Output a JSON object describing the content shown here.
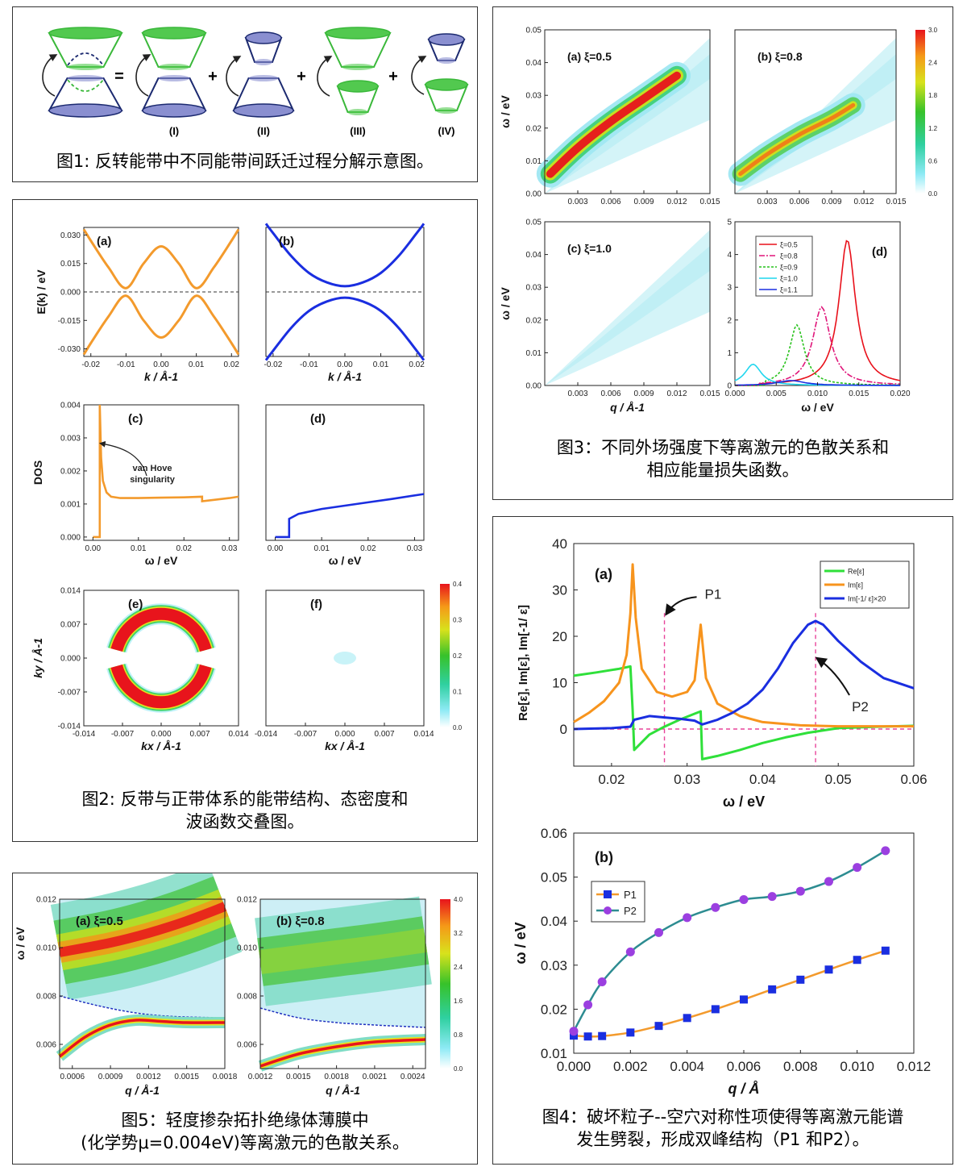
{
  "fig1": {
    "caption": "图1: 反转能带中不同能带间跃迁过程分解示意图。",
    "ops": [
      "=",
      "+",
      "+",
      "+"
    ],
    "labels": [
      "(I)",
      "(II)",
      "(III)",
      "(IV)"
    ]
  },
  "fig2": {
    "caption_line1": "图2: 反带与正带体系的能带结构、态密度和",
    "caption_line2": "波函数交叠图。",
    "annotation_line1": "van Hove",
    "annotation_line2": "singularity",
    "colorbar_ticks": [
      "0.4",
      "0.3",
      "0.2",
      "0.1",
      "0.0"
    ]
  },
  "fig3": {
    "caption_line1": "图3：不同外场强度下等离激元的色散关系和",
    "caption_line2": "相应能量损失函数。",
    "colorbar_ticks": [
      "3.0",
      "2.4",
      "1.8",
      "1.2",
      "0.6",
      "0.0"
    ]
  },
  "fig4": {
    "caption_line1": "图4：破坏粒子--空穴对称性项使得等离激元能谱",
    "caption_line2": "发生劈裂，形成双峰结构（P1 和P2）。",
    "arrow_labels": [
      "P1",
      "P2"
    ]
  },
  "fig5": {
    "caption_line1": "图5：轻度掺杂拓扑绝缘体薄膜中",
    "caption_line2": "(化学势μ=0.004eV)等离激元的色散关系。",
    "colorbar_ticks": [
      "4.0",
      "3.2",
      "2.4",
      "1.6",
      "0.8",
      "0.0"
    ]
  },
  "chart_data": [
    {
      "id": "fig2a",
      "type": "line",
      "panel_label": "(a)",
      "xlabel": "k / Å-1",
      "ylabel": "E(k) / eV",
      "xlim": [
        -0.022,
        0.022
      ],
      "ylim": [
        -0.034,
        0.034
      ],
      "xticks": [
        "-0.02",
        "-0.01",
        "0.00",
        "0.01",
        "0.02"
      ],
      "yticks": [
        "0.030",
        "0.015",
        "0.000",
        "-0.015",
        "-0.030"
      ],
      "series": [
        {
          "role": "conduction",
          "color": "#f39a2c",
          "x": [
            -0.022,
            -0.02,
            -0.015,
            -0.01,
            -0.005,
            0,
            0.005,
            0.01,
            0.015,
            0.02,
            0.022
          ],
          "y": [
            0.033,
            0.027,
            0.013,
            0.002,
            0.015,
            0.024,
            0.015,
            0.002,
            0.013,
            0.027,
            0.033
          ]
        },
        {
          "role": "valence",
          "color": "#f39a2c",
          "x": [
            -0.022,
            -0.02,
            -0.015,
            -0.01,
            -0.005,
            0,
            0.005,
            0.01,
            0.015,
            0.02,
            0.022
          ],
          "y": [
            -0.033,
            -0.027,
            -0.013,
            -0.002,
            -0.015,
            -0.024,
            -0.015,
            -0.002,
            -0.013,
            -0.027,
            -0.033
          ]
        }
      ],
      "reference_line_y": 0
    },
    {
      "id": "fig2b",
      "type": "line",
      "panel_label": "(b)",
      "xlabel": "k / Å-1",
      "xlim": [
        -0.022,
        0.022
      ],
      "ylim": [
        -0.034,
        0.034
      ],
      "xticks": [
        "-0.02",
        "-0.01",
        "0.00",
        "0.01",
        "0.02"
      ],
      "series": [
        {
          "role": "conduction",
          "color": "#1a2ee0",
          "x": [
            -0.022,
            -0.02,
            -0.015,
            -0.01,
            -0.005,
            0,
            0.005,
            0.01,
            0.015,
            0.02,
            0.022
          ],
          "y": [
            0.036,
            0.031,
            0.019,
            0.01,
            0.005,
            0.003,
            0.005,
            0.01,
            0.019,
            0.031,
            0.036
          ]
        },
        {
          "role": "valence",
          "color": "#1a2ee0",
          "x": [
            -0.022,
            -0.02,
            -0.015,
            -0.01,
            -0.005,
            0,
            0.005,
            0.01,
            0.015,
            0.02,
            0.022
          ],
          "y": [
            -0.036,
            -0.031,
            -0.019,
            -0.01,
            -0.005,
            -0.003,
            -0.005,
            -0.01,
            -0.019,
            -0.031,
            -0.036
          ]
        }
      ],
      "reference_line_y": 0
    },
    {
      "id": "fig2c",
      "type": "line",
      "panel_label": "(c)",
      "xlabel": "ω / eV",
      "ylabel": "DOS",
      "xlim": [
        -0.002,
        0.032
      ],
      "ylim": [
        -0.0001,
        0.004
      ],
      "xticks": [
        "0.00",
        "0.01",
        "0.02",
        "0.03"
      ],
      "yticks": [
        "0.004",
        "0.003",
        "0.002",
        "0.001",
        "0.000"
      ],
      "series": [
        {
          "color": "#f39a2c",
          "x": [
            0,
            0.0015,
            0.0015,
            0.0018,
            0.0022,
            0.003,
            0.004,
            0.006,
            0.01,
            0.015,
            0.02,
            0.024,
            0.024,
            0.03,
            0.032
          ],
          "y": [
            0,
            0,
            0.004,
            0.0024,
            0.0017,
            0.00135,
            0.00122,
            0.00118,
            0.00118,
            0.00119,
            0.0012,
            0.00122,
            0.00108,
            0.00118,
            0.00122
          ]
        }
      ]
    },
    {
      "id": "fig2d",
      "type": "line",
      "panel_label": "(d)",
      "xlabel": "ω / eV",
      "xlim": [
        -0.002,
        0.032
      ],
      "ylim": [
        -0.0001,
        0.004
      ],
      "xticks": [
        "0.00",
        "0.01",
        "0.02",
        "0.03"
      ],
      "series": [
        {
          "color": "#1a2ee0",
          "x": [
            0,
            0.003,
            0.003,
            0.005,
            0.01,
            0.015,
            0.02,
            0.025,
            0.032
          ],
          "y": [
            0,
            0,
            0.00055,
            0.0007,
            0.00085,
            0.00095,
            0.00105,
            0.00115,
            0.0013
          ]
        }
      ]
    },
    {
      "id": "fig2e",
      "type": "heatmap",
      "panel_label": "(e)",
      "xlabel": "kx / Å-1",
      "ylabel": "ky / Å-1",
      "xlim": [
        -0.014,
        0.014
      ],
      "ylim": [
        -0.014,
        0.014
      ],
      "xticks": [
        "-0.014",
        "-0.007",
        "0.000",
        "0.007",
        "0.014"
      ],
      "yticks": [
        "0.014",
        "0.007",
        "0.000",
        "-0.007",
        "-0.014"
      ]
    },
    {
      "id": "fig2f",
      "type": "heatmap",
      "panel_label": "(f)",
      "xlabel": "kx / Å-1",
      "xlim": [
        -0.014,
        0.014
      ],
      "ylim": [
        -0.014,
        0.014
      ],
      "xticks": [
        "-0.014",
        "-0.007",
        "0.000",
        "0.007",
        "0.014"
      ]
    },
    {
      "id": "fig3a",
      "type": "heatmap",
      "panel_label": "(a)  ξ=0.5",
      "ylabel": "ω / eV",
      "xlim": [
        0,
        0.015
      ],
      "ylim": [
        0,
        0.05
      ],
      "xticks": [
        "0.003",
        "0.006",
        "0.009",
        "0.012",
        "0.015"
      ],
      "yticks": [
        "0.05",
        "0.04",
        "0.03",
        "0.02",
        "0.01",
        "0.00"
      ],
      "ridge": {
        "x": [
          0.0005,
          0.003,
          0.006,
          0.009,
          0.012
        ],
        "y": [
          0.006,
          0.014,
          0.022,
          0.029,
          0.036
        ]
      }
    },
    {
      "id": "fig3b",
      "type": "heatmap",
      "panel_label": "(b)  ξ=0.8",
      "xlim": [
        0,
        0.015
      ],
      "ylim": [
        0,
        0.05
      ],
      "xticks": [
        "0.003",
        "0.006",
        "0.009",
        "0.012",
        "0.015"
      ],
      "ridge": {
        "x": [
          0.0005,
          0.003,
          0.006,
          0.009,
          0.011
        ],
        "y": [
          0.006,
          0.012,
          0.018,
          0.023,
          0.027
        ]
      }
    },
    {
      "id": "fig3c",
      "type": "heatmap",
      "panel_label": "(c)  ξ=1.0",
      "xlabel": "q / Å-1",
      "ylabel": "ω / eV",
      "xlim": [
        0,
        0.015
      ],
      "ylim": [
        0,
        0.05
      ],
      "xticks": [
        "0.003",
        "0.006",
        "0.009",
        "0.012",
        "0.015"
      ],
      "yticks": [
        "0.05",
        "0.04",
        "0.03",
        "0.02",
        "0.01",
        "0.00"
      ]
    },
    {
      "id": "fig3d",
      "type": "line",
      "panel_label": "(d)",
      "xlabel": "ω / eV",
      "xlim": [
        0,
        0.02
      ],
      "ylim": [
        0,
        5
      ],
      "xticks": [
        "0.000",
        "0.005",
        "0.010",
        "0.015",
        "0.020"
      ],
      "yticks": [
        "5",
        "4",
        "3",
        "2",
        "1",
        "0"
      ],
      "series": [
        {
          "name": "ξ=0.5",
          "color": "#e8101a",
          "dash": "",
          "peak_x": 0.0136,
          "peak_y": 4.45,
          "width": 0.0012,
          "start": 0.003
        },
        {
          "name": "ξ=0.8",
          "color": "#e0157a",
          "dash": "7,2,2,2",
          "peak_x": 0.0105,
          "peak_y": 2.4,
          "width": 0.0013,
          "start": 0.003
        },
        {
          "name": "ξ=0.9",
          "color": "#27c21b",
          "dash": "3,2",
          "peak_x": 0.0075,
          "peak_y": 1.85,
          "width": 0.0011,
          "start": 0.0035
        },
        {
          "name": "ξ=1.0",
          "color": "#1fd6ee",
          "dash": "",
          "peak_x": 0.0022,
          "peak_y": 0.65,
          "width": 0.0012,
          "start": 0.0
        },
        {
          "name": "ξ=1.1",
          "color": "#1a2ee0",
          "dash": "",
          "peak_x": 0.0068,
          "peak_y": 0.15,
          "width": 0.002,
          "start": 0.0
        }
      ]
    },
    {
      "id": "fig4a",
      "type": "line",
      "panel_label": "(a)",
      "xlabel": "ω / eV",
      "ylabel": "Re[ε], Im[ε], Im[-1/ ε]",
      "xlim": [
        0.015,
        0.06
      ],
      "ylim": [
        -8,
        40
      ],
      "xticks": [
        "0.02",
        "0.03",
        "0.04",
        "0.05",
        "0.06"
      ],
      "yticks": [
        "40",
        "30",
        "20",
        "10",
        "0"
      ],
      "series": [
        {
          "name": "Re[ε]",
          "color": "#2fe03a",
          "x": [
            0.015,
            0.018,
            0.021,
            0.0225,
            0.0228,
            0.023,
            0.025,
            0.027,
            0.029,
            0.031,
            0.0318,
            0.032,
            0.034,
            0.037,
            0.04,
            0.043,
            0.046,
            0.05,
            0.055,
            0.06
          ],
          "y": [
            11.5,
            12.2,
            13.0,
            13.5,
            4,
            -4.5,
            -1.2,
            0.5,
            2.0,
            3.3,
            3.8,
            -6.5,
            -5.8,
            -4.5,
            -3.0,
            -1.8,
            -0.8,
            0.2,
            0.5,
            0.7
          ]
        },
        {
          "name": "Im[ε]",
          "color": "#f7941d",
          "x": [
            0.015,
            0.017,
            0.019,
            0.021,
            0.022,
            0.0225,
            0.0228,
            0.0232,
            0.024,
            0.026,
            0.028,
            0.03,
            0.031,
            0.0318,
            0.0325,
            0.034,
            0.037,
            0.04,
            0.045,
            0.05,
            0.06
          ],
          "y": [
            1.5,
            3.5,
            6.0,
            10.0,
            16,
            25,
            35.5,
            24,
            13,
            8.0,
            7.0,
            8.0,
            10.5,
            22.5,
            11,
            5.5,
            2.8,
            1.5,
            0.8,
            0.6,
            0.6
          ]
        },
        {
          "name": "Im[-1/ ε]×20",
          "color": "#1a2ee0",
          "x": [
            0.015,
            0.02,
            0.0225,
            0.023,
            0.025,
            0.027,
            0.029,
            0.031,
            0.032,
            0.034,
            0.036,
            0.038,
            0.04,
            0.042,
            0.044,
            0.046,
            0.047,
            0.048,
            0.05,
            0.053,
            0.056,
            0.06
          ],
          "y": [
            0,
            0.2,
            0.5,
            2.0,
            2.8,
            2.5,
            2.2,
            1.8,
            1.0,
            2.0,
            3.5,
            5.5,
            8.5,
            13.0,
            18.5,
            22.5,
            23.3,
            22.5,
            19.0,
            14.5,
            11.0,
            8.8
          ]
        }
      ],
      "markers": {
        "P1_x": 0.027,
        "P2_x": 0.047,
        "zero_line_y": 0
      }
    },
    {
      "id": "fig4b",
      "type": "line",
      "panel_label": "(b)",
      "xlabel": "q / Å",
      "ylabel": "ω / eV",
      "xlim": [
        0,
        0.012
      ],
      "ylim": [
        0.01,
        0.06
      ],
      "xticks": [
        "0.000",
        "0.002",
        "0.004",
        "0.006",
        "0.008",
        "0.010",
        "0.012"
      ],
      "yticks": [
        "0.06",
        "0.05",
        "0.04",
        "0.03",
        "0.02",
        "0.01"
      ],
      "series": [
        {
          "name": "P1",
          "color": "#f39a2c",
          "marker": "square",
          "marker_color": "#1a2ee0",
          "x": [
            0.0,
            0.0005,
            0.001,
            0.002,
            0.003,
            0.004,
            0.005,
            0.006,
            0.007,
            0.008,
            0.009,
            0.01,
            0.011
          ],
          "y": [
            0.014,
            0.0138,
            0.0139,
            0.0147,
            0.0162,
            0.018,
            0.02,
            0.0222,
            0.0245,
            0.0267,
            0.029,
            0.0312,
            0.0333
          ]
        },
        {
          "name": "P2",
          "color": "#2d8c91",
          "marker": "circle",
          "marker_color": "#9b3fe0",
          "x": [
            0.0,
            0.0005,
            0.001,
            0.002,
            0.003,
            0.004,
            0.005,
            0.006,
            0.007,
            0.008,
            0.009,
            0.01,
            0.011
          ],
          "y": [
            0.015,
            0.021,
            0.0262,
            0.033,
            0.0374,
            0.0408,
            0.0431,
            0.0449,
            0.0456,
            0.0468,
            0.049,
            0.0522,
            0.056
          ]
        }
      ]
    },
    {
      "id": "fig5a",
      "type": "heatmap",
      "panel_label": "(a)  ξ=0.5",
      "xlabel": "q / Å-1",
      "ylabel": "ω / eV",
      "xlim": [
        0.0005,
        0.0018
      ],
      "ylim": [
        0.005,
        0.012
      ],
      "xticks": [
        "0.0006",
        "0.0009",
        "0.0012",
        "0.0015",
        "0.0018"
      ],
      "yticks": [
        "0.012",
        "0.010",
        "0.008",
        "0.006"
      ],
      "lower_branch": {
        "x": [
          0.0005,
          0.0007,
          0.0009,
          0.0011,
          0.0013,
          0.0015,
          0.0018
        ],
        "y": [
          0.0055,
          0.0063,
          0.0068,
          0.007,
          0.00695,
          0.0069,
          0.0069
        ]
      },
      "dashed_edge": {
        "x": [
          0.0005,
          0.0008,
          0.0011,
          0.0014,
          0.0018
        ],
        "y": [
          0.008,
          0.0076,
          0.0073,
          0.00715,
          0.0071
        ]
      }
    },
    {
      "id": "fig5b",
      "type": "heatmap",
      "panel_label": "(b)  ξ=0.8",
      "xlabel": "q / Å-1",
      "xlim": [
        0.0012,
        0.0025
      ],
      "ylim": [
        0.005,
        0.012
      ],
      "xticks": [
        "0.0012",
        "0.0015",
        "0.0018",
        "0.0021",
        "0.0024"
      ],
      "yticks": [
        "0.012",
        "0.010",
        "0.008",
        "0.006"
      ],
      "lower_branch": {
        "x": [
          0.0012,
          0.0015,
          0.0018,
          0.0021,
          0.0025
        ],
        "y": [
          0.0051,
          0.0056,
          0.0059,
          0.0061,
          0.0062
        ]
      },
      "dashed_edge": {
        "x": [
          0.0012,
          0.0015,
          0.0018,
          0.0021,
          0.0025
        ],
        "y": [
          0.0075,
          0.0071,
          0.0069,
          0.0068,
          0.0067
        ]
      }
    }
  ]
}
